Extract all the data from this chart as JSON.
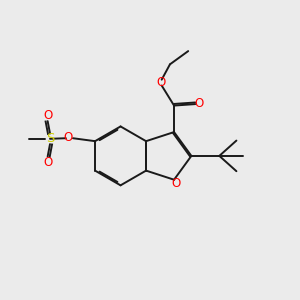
{
  "bg_color": "#ebebeb",
  "bond_color": "#1a1a1a",
  "oxygen_color": "#ff0000",
  "sulfur_color": "#cccc00",
  "lw": 1.4,
  "dbo": 0.055,
  "figsize": [
    3.0,
    3.0
  ],
  "dpi": 100,
  "xlim": [
    0,
    10
  ],
  "ylim": [
    0,
    10
  ]
}
